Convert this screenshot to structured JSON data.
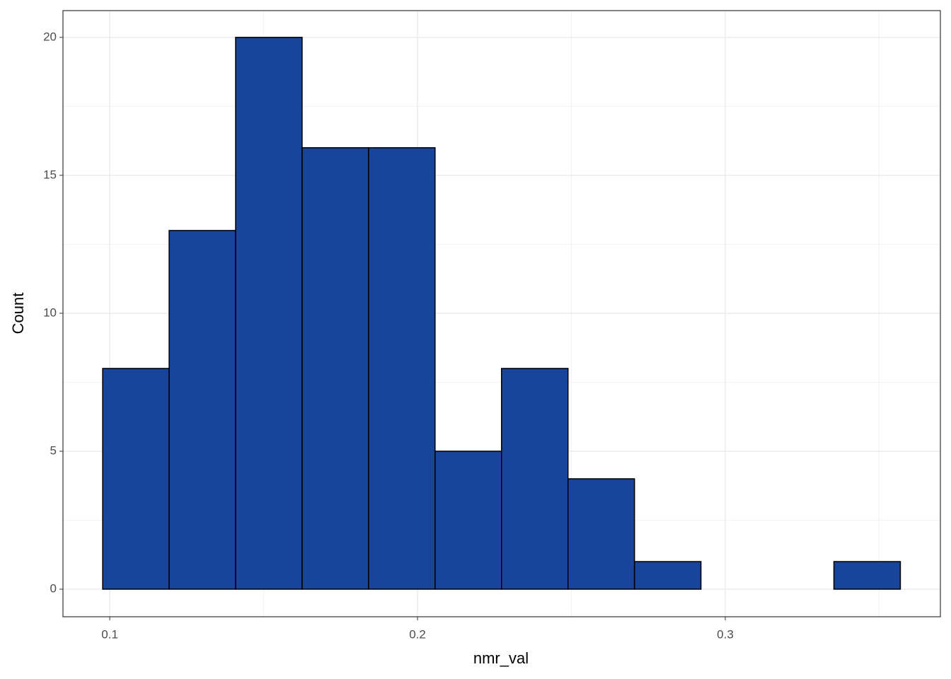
{
  "chart_data": {
    "type": "histogram",
    "x_label": "nmr_val",
    "y_label": "Count",
    "bins": [
      0.0977,
      0.1193,
      0.1409,
      0.1625,
      0.1841,
      0.2057,
      0.2273,
      0.2489,
      0.2705,
      0.2921,
      0.3137,
      0.3353,
      0.3569
    ],
    "values": [
      8,
      13,
      20,
      16,
      16,
      5,
      8,
      4,
      1,
      0,
      0,
      1
    ],
    "color": "#18449b",
    "xlim": [
      0.0848,
      0.3699
    ],
    "ylim": [
      -1,
      20.97
    ],
    "xticks": [
      0.1,
      0.2,
      0.3
    ],
    "yticks": [
      0,
      5,
      10,
      15,
      20
    ],
    "xminor": [
      0.15,
      0.25,
      0.35
    ],
    "yminor": [
      2.5,
      7.5,
      12.5,
      17.5
    ],
    "grid": true
  }
}
